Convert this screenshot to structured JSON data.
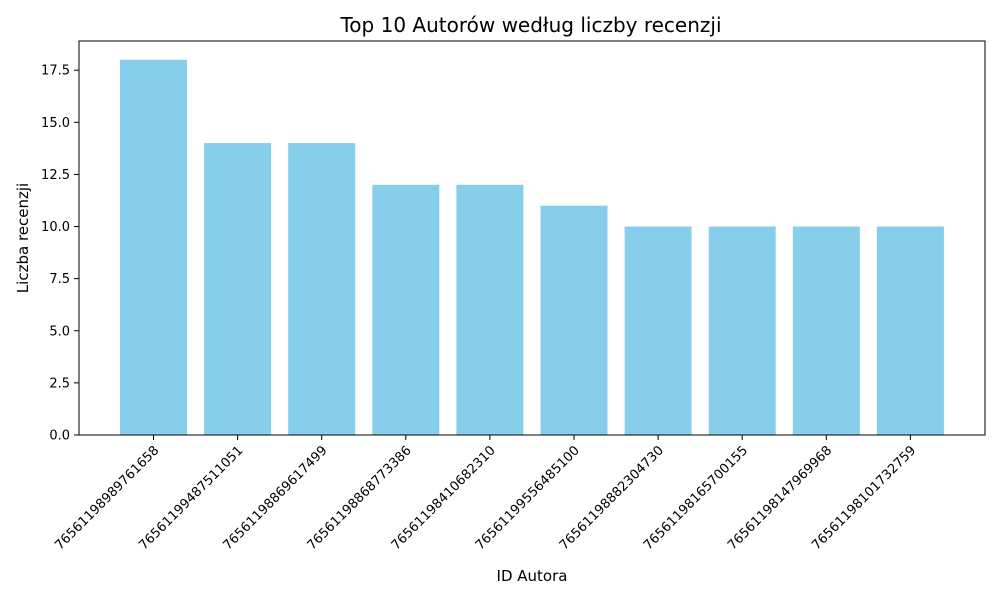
{
  "chart_data": {
    "type": "bar",
    "title": "Top 10 Autorów według liczby recenzji",
    "xlabel": "ID Autora",
    "ylabel": "Liczba recenzji",
    "categories": [
      "76561198989761658",
      "76561199487511051",
      "76561198869617499",
      "76561198868773386",
      "76561198410682310",
      "76561199556485100",
      "76561198882304730",
      "76561198165700155",
      "76561198147969968",
      "76561198101732759"
    ],
    "values": [
      18,
      14,
      14,
      12,
      12,
      11,
      10,
      10,
      10,
      10
    ],
    "ylim": [
      0,
      18.9
    ],
    "yticks": [
      "0.0",
      "2.5",
      "5.0",
      "7.5",
      "10.0",
      "12.5",
      "15.0",
      "17.5"
    ],
    "ytick_values": [
      0,
      2.5,
      5,
      7.5,
      10,
      12.5,
      15,
      17.5
    ],
    "bar_color": "#87CEEB",
    "grid": false,
    "legend": false
  }
}
